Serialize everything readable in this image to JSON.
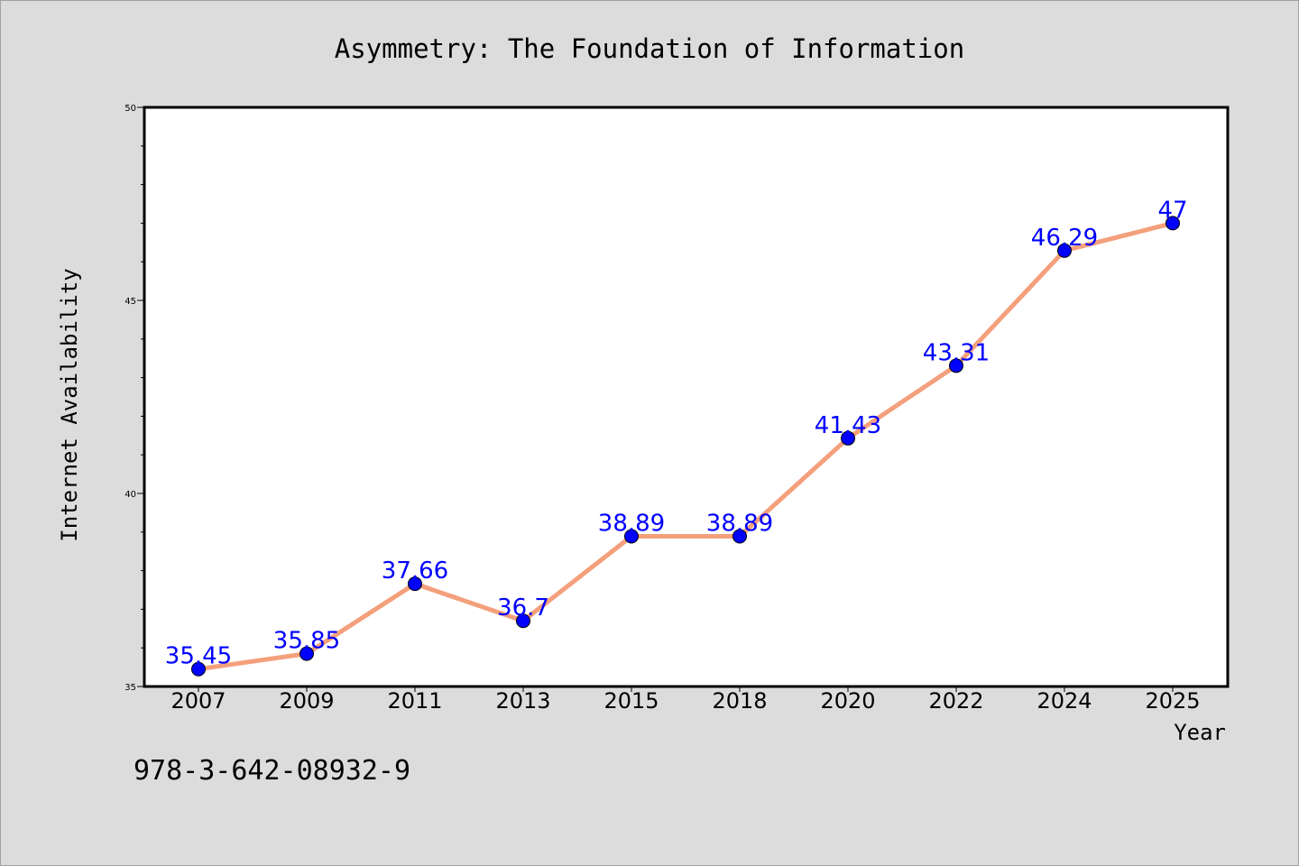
{
  "chart_data": {
    "type": "line",
    "title": "Asymmetry: The Foundation of Information",
    "xlabel": "Year",
    "ylabel": "Internet Availability",
    "categories": [
      "2007",
      "2009",
      "2011",
      "2013",
      "2015",
      "2018",
      "2020",
      "2022",
      "2024",
      "2025"
    ],
    "series": [
      {
        "values": [
          35.45,
          35.85,
          37.66,
          36.7,
          38.89,
          38.89,
          41.43,
          43.31,
          46.29,
          47
        ],
        "labels": [
          "35.45",
          "35.85",
          "37.66",
          "36.7",
          "38.89",
          "38.89",
          "41.43",
          "43.31",
          "46.29",
          "47"
        ],
        "line_color": "#f4a07c",
        "marker_color": "#0000ff"
      }
    ],
    "ylim": [
      35,
      50
    ],
    "yticks": [
      35,
      40,
      45,
      50
    ],
    "ytick_labels": [
      "35",
      "40",
      "45",
      "50"
    ],
    "grid": false,
    "label_color": "#0000ff"
  },
  "footer": {
    "isbn": "978-3-642-08932-9"
  }
}
